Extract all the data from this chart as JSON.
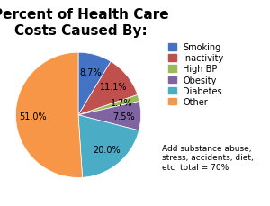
{
  "title": "Percent of Health Care\nCosts Caused By:",
  "labels": [
    "Smoking",
    "Inactivity",
    "High BP",
    "Obesity",
    "Diabetes",
    "Other"
  ],
  "values": [
    8.7,
    11.1,
    1.7,
    7.5,
    20.0,
    51.1
  ],
  "colors": [
    "#4472C4",
    "#C0504D",
    "#9BBB59",
    "#8064A2",
    "#4BACC6",
    "#F79646"
  ],
  "startangle": 90,
  "legend_note": "Add substance abuse,\nstress, accidents, diet,\netc  total = 70%",
  "title_fontsize": 11,
  "label_fontsize": 7,
  "legend_fontsize": 7,
  "note_fontsize": 6.5
}
